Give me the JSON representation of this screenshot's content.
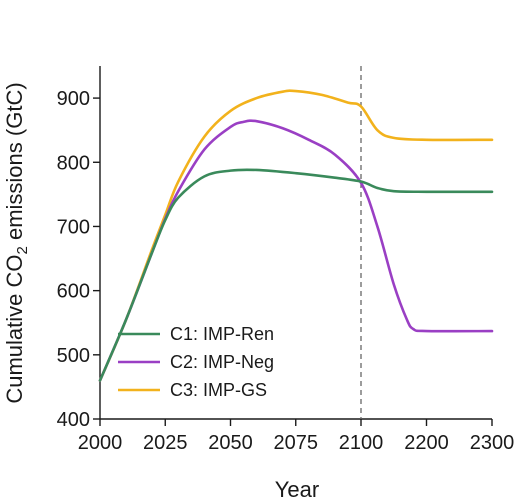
{
  "chart_data": {
    "type": "line",
    "title": "",
    "xlabel": "Year",
    "ylabel": {
      "prefix": "Cumulative CO",
      "subscript": "2",
      "suffix": " emissions (GtC)"
    },
    "xticks": [
      "2000",
      "2025",
      "2050",
      "2075",
      "2100",
      "2200",
      "2300"
    ],
    "yticks": [
      400,
      500,
      600,
      700,
      800,
      900
    ],
    "ylim": [
      400,
      950
    ],
    "axis_note": "x-axis has a break in scale at 2100 (2000–2100 then 2100–2300)",
    "divider_year": 2100,
    "grid": false,
    "legend_position": "lower-left",
    "series": [
      {
        "name": "C1: IMP-Ren",
        "color": "#3a8a5b",
        "points": [
          [
            2000,
            460
          ],
          [
            2010,
            555
          ],
          [
            2020,
            660
          ],
          [
            2025,
            710
          ],
          [
            2030,
            745
          ],
          [
            2040,
            778
          ],
          [
            2050,
            787
          ],
          [
            2060,
            788
          ],
          [
            2075,
            783
          ],
          [
            2090,
            776
          ],
          [
            2100,
            770
          ],
          [
            2125,
            760
          ],
          [
            2150,
            755
          ],
          [
            2200,
            754
          ],
          [
            2300,
            754
          ]
        ]
      },
      {
        "name": "C2: IMP-Neg",
        "color": "#9a3fc4",
        "points": [
          [
            2000,
            460
          ],
          [
            2010,
            555
          ],
          [
            2020,
            660
          ],
          [
            2025,
            712
          ],
          [
            2030,
            755
          ],
          [
            2040,
            820
          ],
          [
            2050,
            855
          ],
          [
            2055,
            863
          ],
          [
            2060,
            864
          ],
          [
            2070,
            853
          ],
          [
            2080,
            835
          ],
          [
            2090,
            812
          ],
          [
            2100,
            768
          ],
          [
            2125,
            700
          ],
          [
            2150,
            610
          ],
          [
            2170,
            555
          ],
          [
            2180,
            540
          ],
          [
            2200,
            537
          ],
          [
            2300,
            537
          ]
        ]
      },
      {
        "name": "C3: IMP-GS",
        "color": "#f2b21c",
        "points": [
          [
            2000,
            460
          ],
          [
            2010,
            555
          ],
          [
            2020,
            665
          ],
          [
            2025,
            718
          ],
          [
            2030,
            770
          ],
          [
            2040,
            840
          ],
          [
            2050,
            880
          ],
          [
            2060,
            900
          ],
          [
            2070,
            910
          ],
          [
            2075,
            911
          ],
          [
            2085,
            905
          ],
          [
            2095,
            893
          ],
          [
            2100,
            887
          ],
          [
            2125,
            850
          ],
          [
            2150,
            838
          ],
          [
            2200,
            835
          ],
          [
            2300,
            835
          ]
        ]
      }
    ]
  }
}
